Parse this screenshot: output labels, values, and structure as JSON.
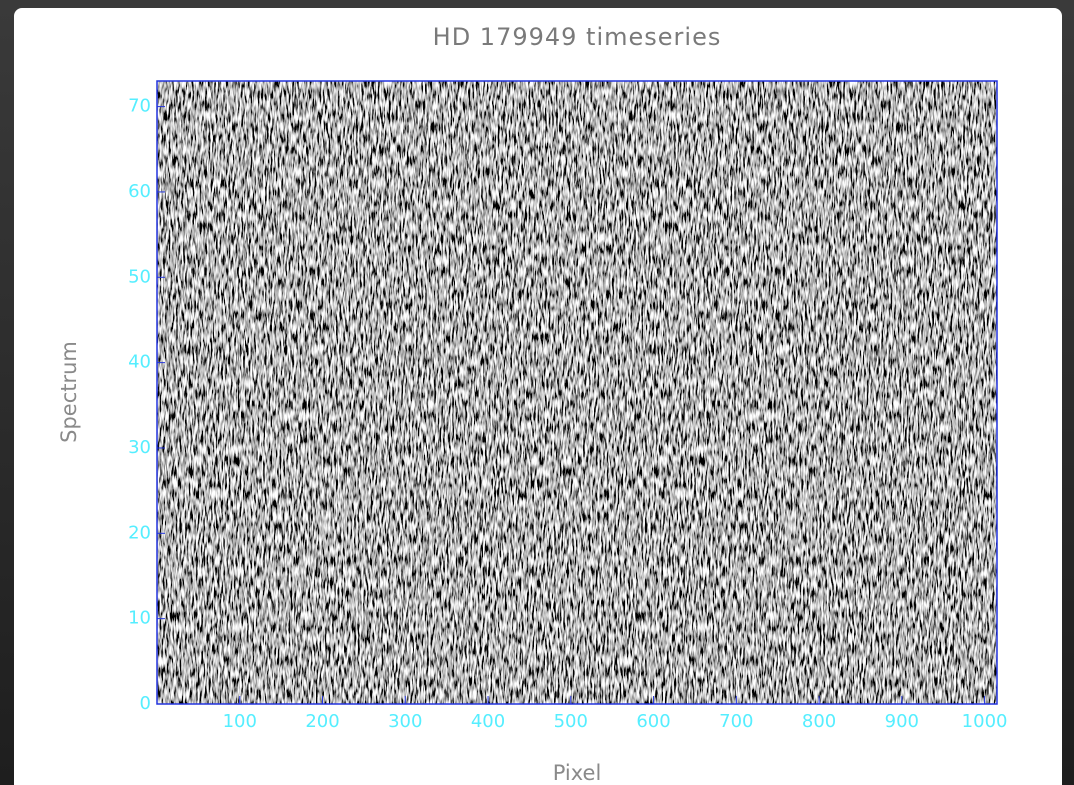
{
  "chart_data": {
    "type": "image",
    "title": "HD 179949 timeseries",
    "x_label": "Pixel",
    "y_label": "Spectrum",
    "xlim": [
      0,
      1015
    ],
    "ylim": [
      0,
      73
    ],
    "xticks": [
      100,
      200,
      300,
      400,
      500,
      600,
      700,
      800,
      900,
      1000
    ],
    "yticks": [
      0,
      10,
      20,
      30,
      40,
      50,
      60,
      70
    ],
    "colormap": "gray",
    "frame_color": "#2233dd",
    "tick_color": "#55eeff"
  }
}
